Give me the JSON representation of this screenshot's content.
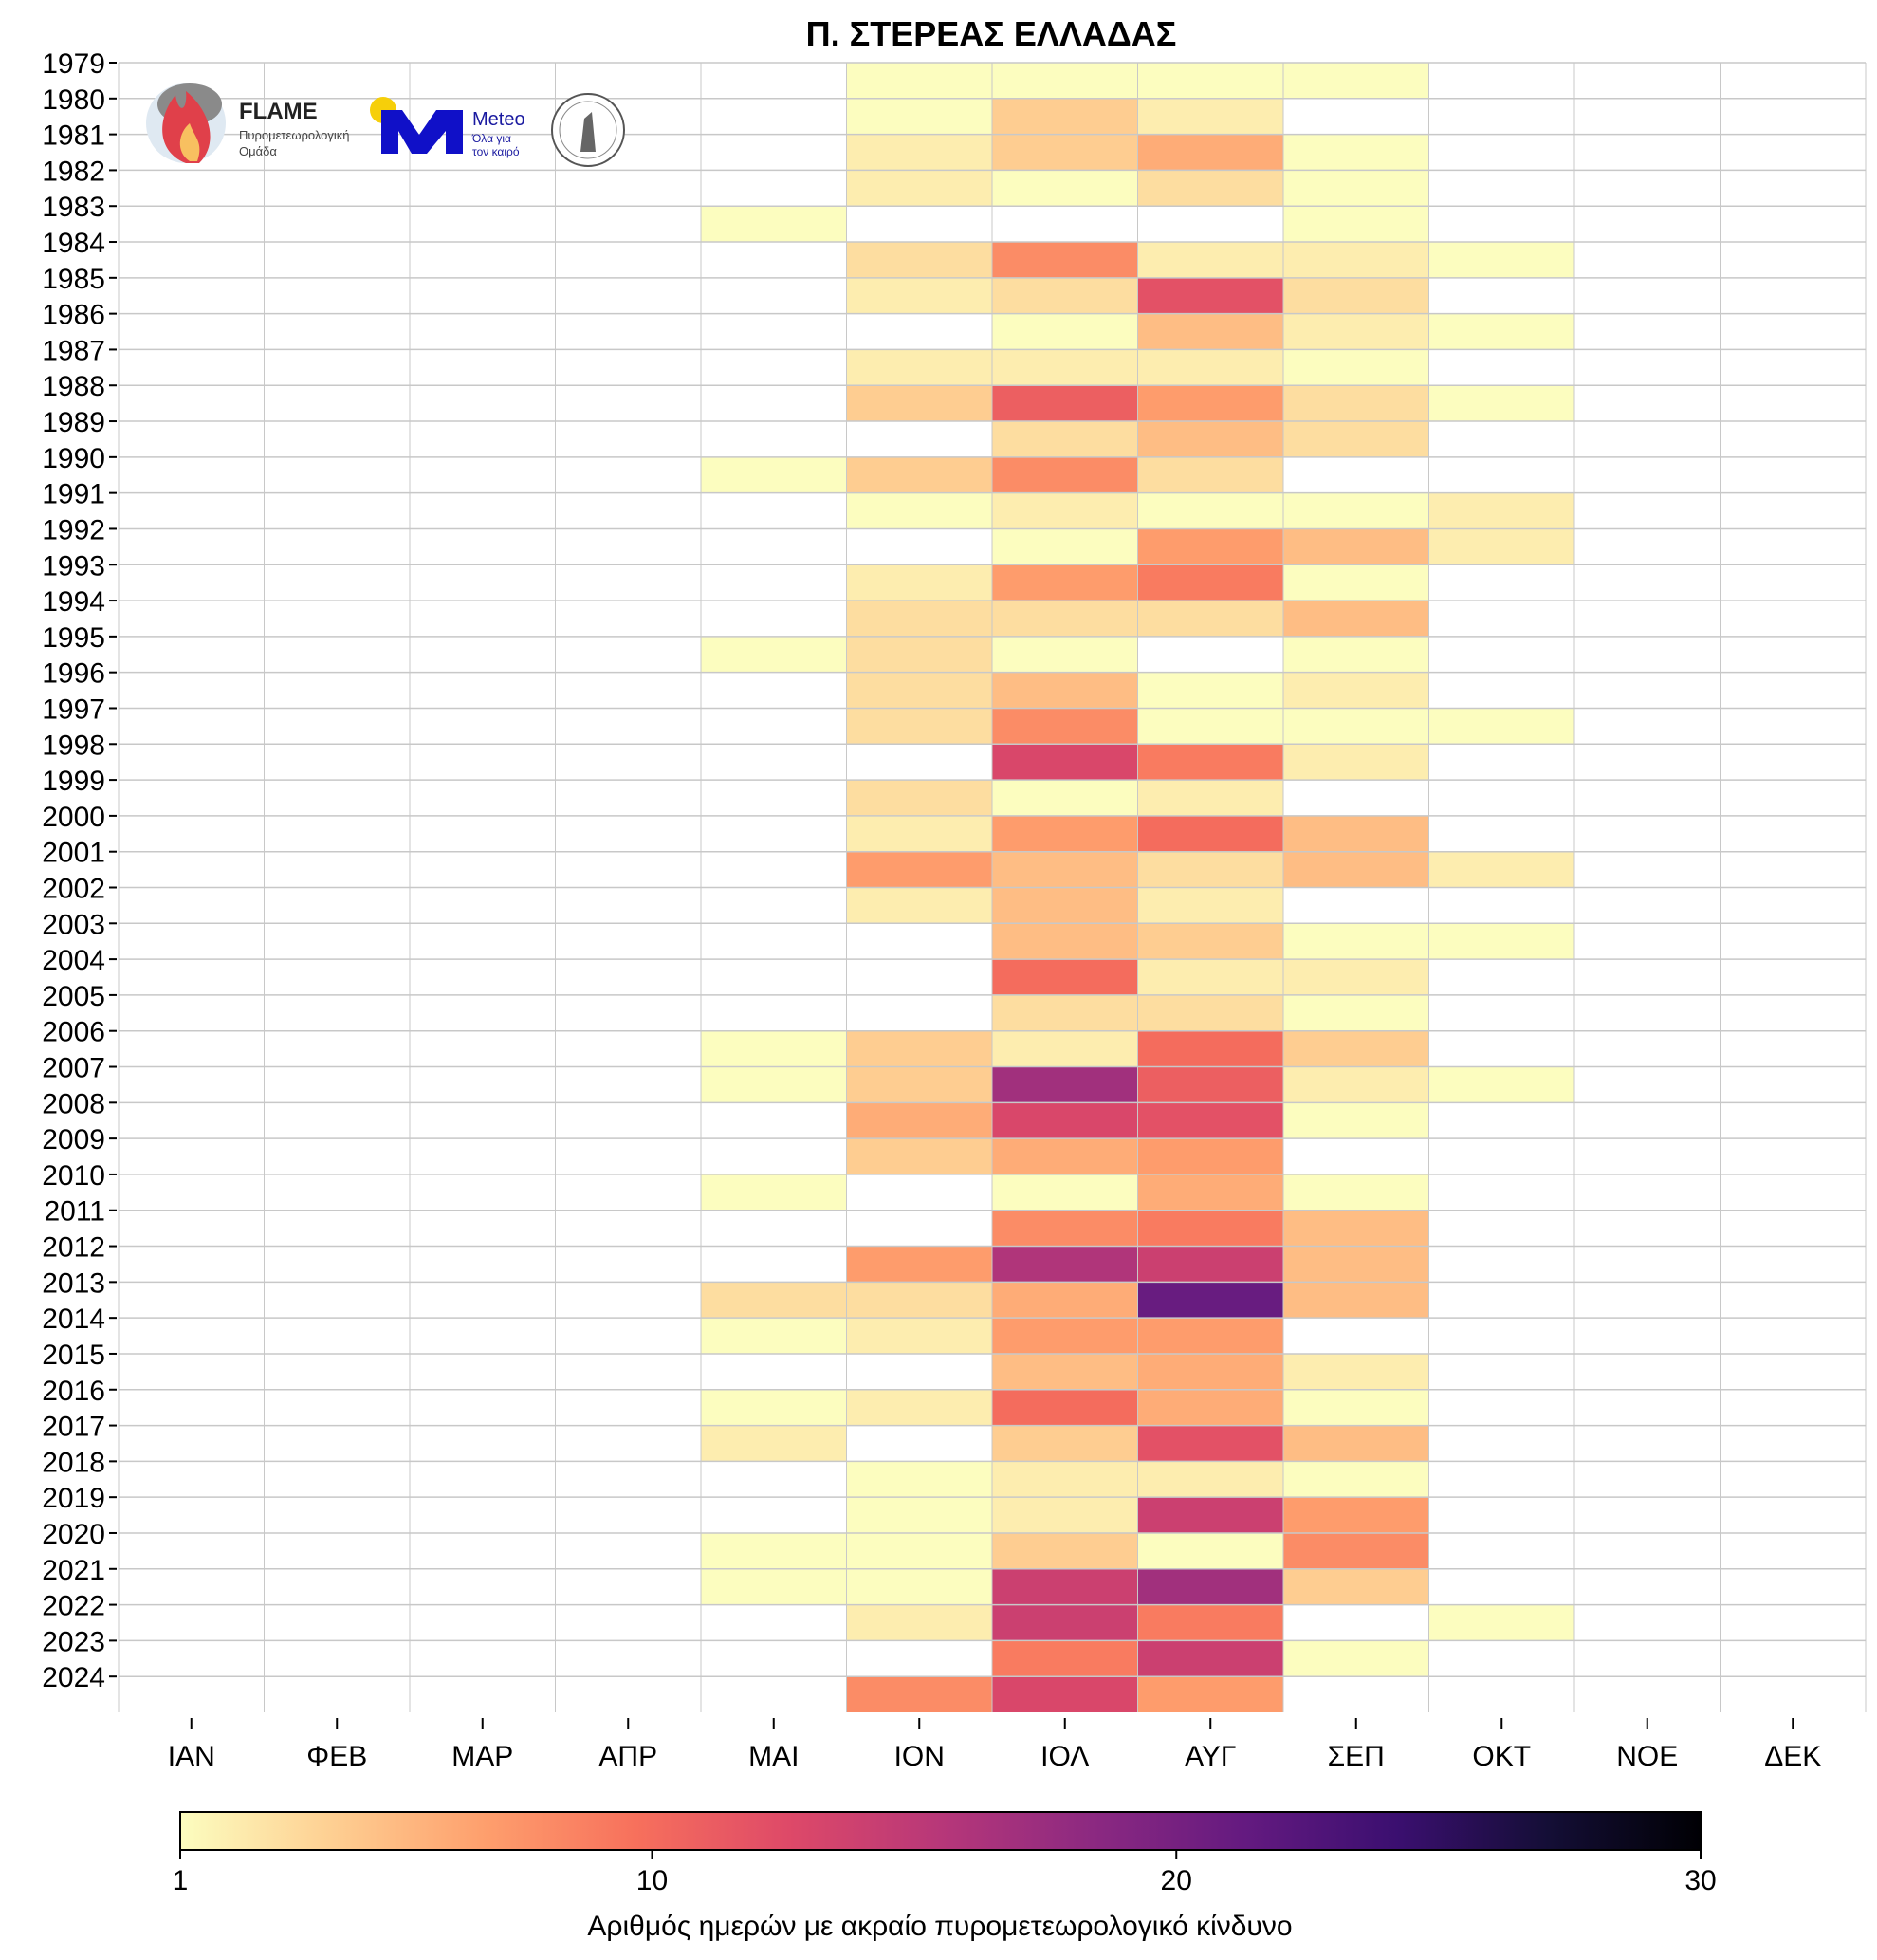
{
  "chart_data": {
    "type": "heatmap",
    "title": "Π. ΣΤΕΡΕΑΣ ΕΛΛΑΔΑΣ",
    "xlabel": "",
    "ylabel": "",
    "colorbar_label": "Αριθμός ημερών με ακραίο πυρομετεωρολογικό κίνδυνο",
    "colorbar_ticks": [
      "1",
      "10",
      "20",
      "30"
    ],
    "color_range": [
      1,
      30
    ],
    "colormap": "magma_r",
    "grid": true,
    "months": [
      "ΙΑΝ",
      "ΦΕΒ",
      "ΜΑΡ",
      "ΑΠΡ",
      "ΜΑΙ",
      "ΙΟΝ",
      "ΙΟΛ",
      "ΑΥΓ",
      "ΣΕΠ",
      "ΟΚΤ",
      "ΝΟΕ",
      "ΔΕΚ"
    ],
    "years": [
      "1979",
      "1980",
      "1981",
      "1982",
      "1983",
      "1984",
      "1985",
      "1986",
      "1987",
      "1988",
      "1989",
      "1990",
      "1991",
      "1992",
      "1993",
      "1994",
      "1995",
      "1996",
      "1997",
      "1998",
      "1999",
      "2000",
      "2001",
      "2002",
      "2003",
      "2004",
      "2005",
      "2006",
      "2007",
      "2008",
      "2009",
      "2010",
      "2011",
      "2012",
      "2013",
      "2014",
      "2015",
      "2016",
      "2017",
      "2018",
      "2019",
      "2020",
      "2021",
      "2022",
      "2023",
      "2024"
    ],
    "values_note": "per year: values for ΜΑΙ, ΙΟΝ, ΙΟΛ, ΑΥΓ, ΣΕΠ, ΟΚΤ (other months empty)",
    "values": [
      [
        null,
        1,
        1,
        1,
        1,
        null
      ],
      [
        null,
        1,
        4,
        2,
        null,
        null
      ],
      [
        null,
        2,
        4,
        6,
        1,
        null
      ],
      [
        null,
        2,
        1,
        3,
        1,
        null
      ],
      [
        1,
        null,
        null,
        null,
        1,
        null
      ],
      [
        null,
        3,
        8,
        2,
        2,
        1
      ],
      [
        null,
        2,
        3,
        12,
        3,
        null
      ],
      [
        null,
        null,
        1,
        5,
        2,
        1
      ],
      [
        null,
        2,
        2,
        2,
        1,
        null
      ],
      [
        null,
        4,
        11,
        7,
        3,
        1
      ],
      [
        null,
        null,
        3,
        5,
        3,
        null
      ],
      [
        1,
        4,
        8,
        3,
        null,
        null
      ],
      [
        null,
        1,
        2,
        1,
        1,
        2
      ],
      [
        null,
        null,
        1,
        7,
        5,
        2
      ],
      [
        null,
        2,
        7,
        9,
        1,
        null
      ],
      [
        null,
        3,
        3,
        3,
        5,
        null
      ],
      [
        1,
        3,
        1,
        null,
        1,
        null
      ],
      [
        null,
        3,
        5,
        1,
        2,
        null
      ],
      [
        null,
        3,
        8,
        1,
        1,
        1
      ],
      [
        null,
        null,
        13,
        9,
        2,
        null
      ],
      [
        null,
        3,
        1,
        2,
        null,
        null
      ],
      [
        null,
        2,
        7,
        10,
        5,
        null
      ],
      [
        null,
        7,
        5,
        3,
        5,
        2
      ],
      [
        null,
        2,
        5,
        2,
        null,
        null
      ],
      [
        null,
        null,
        5,
        4,
        1,
        1
      ],
      [
        null,
        null,
        10,
        2,
        2,
        null
      ],
      [
        null,
        null,
        3,
        3,
        1,
        null
      ],
      [
        1,
        4,
        2,
        10,
        4,
        null
      ],
      [
        1,
        4,
        17,
        11,
        2,
        1
      ],
      [
        null,
        6,
        13,
        12,
        1,
        null
      ],
      [
        null,
        4,
        6,
        7,
        null,
        null
      ],
      [
        1,
        null,
        1,
        6,
        1,
        null
      ],
      [
        null,
        null,
        8,
        9,
        5,
        null
      ],
      [
        null,
        7,
        16,
        14,
        5,
        null
      ],
      [
        3,
        3,
        6,
        21,
        5,
        null
      ],
      [
        1,
        2,
        7,
        7,
        null,
        null
      ],
      [
        null,
        null,
        5,
        6,
        2,
        null
      ],
      [
        1,
        2,
        10,
        6,
        1,
        null
      ],
      [
        2,
        null,
        4,
        12,
        5,
        null
      ],
      [
        null,
        1,
        2,
        2,
        1,
        null
      ],
      [
        null,
        1,
        2,
        14,
        7,
        null
      ],
      [
        1,
        1,
        4,
        1,
        8,
        null
      ],
      [
        1,
        1,
        14,
        17,
        4,
        null
      ],
      [
        null,
        2,
        14,
        9,
        null,
        1
      ],
      [
        null,
        null,
        9,
        14,
        1,
        null
      ],
      [
        null,
        8,
        13,
        7,
        null,
        null
      ]
    ]
  },
  "logos": {
    "flame": "FLAME",
    "flame_sub1": "Πυρομετεωρολογική",
    "flame_sub2": "Ομάδα",
    "meteo": "Meteo",
    "meteo_sub1": "Όλα για",
    "meteo_sub2": "τον καιρό"
  }
}
